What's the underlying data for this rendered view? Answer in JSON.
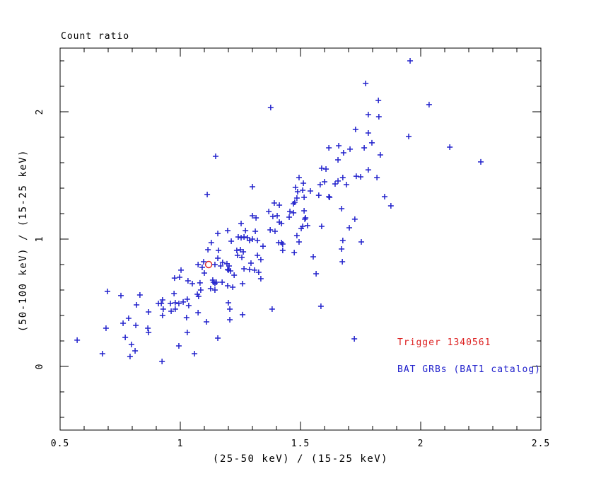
{
  "chart_data": {
    "type": "scatter",
    "title": "Count ratio",
    "xlabel": "(25-50 keV) / (15-25 keV)",
    "ylabel": "(50-100 keV) / (15-25 keV)",
    "xlim": [
      0.5,
      2.5
    ],
    "ylim": [
      -0.5,
      2.5
    ],
    "x_major_ticks": [
      0.5,
      1.0,
      1.5,
      2.0,
      2.5
    ],
    "x_tick_labels": [
      "0.5",
      "1",
      "1.5",
      "2",
      "2.5"
    ],
    "x_minor_step": 0.1,
    "y_major_ticks": [
      0,
      1,
      2
    ],
    "y_tick_labels": [
      "0",
      "1",
      "2"
    ],
    "y_minor_step": 0.2,
    "grid": false,
    "axis_color": "#000000",
    "background_color": "#ffffff",
    "legend": [
      {
        "label": "Trigger 1340561",
        "color": "#dd2222"
      },
      {
        "label": "BAT GRBs (BAT1 catalog)",
        "color": "#2222cc"
      }
    ],
    "series": [
      {
        "name": "Trigger 1340561",
        "marker": "circle-open",
        "color": "#dd2222",
        "points": [
          [
            1.118,
            0.8
          ]
        ]
      },
      {
        "name": "BAT GRBs (BAT1 catalog)",
        "marker": "plus",
        "color": "#2222cc",
        "points": [
          [
            1.147,
            1.65
          ],
          [
            1.771,
            2.222
          ],
          [
            1.824,
            2.089
          ],
          [
            1.782,
            1.978
          ],
          [
            1.826,
            1.961
          ],
          [
            1.376,
            2.033
          ],
          [
            1.729,
            1.861
          ],
          [
            1.782,
            1.833
          ],
          [
            1.797,
            1.756
          ],
          [
            1.618,
            1.717
          ],
          [
            1.659,
            1.733
          ],
          [
            1.679,
            1.678
          ],
          [
            1.706,
            1.706
          ],
          [
            1.765,
            1.717
          ],
          [
            1.656,
            1.622
          ],
          [
            1.832,
            1.661
          ],
          [
            1.588,
            1.556
          ],
          [
            1.606,
            1.55
          ],
          [
            1.782,
            1.544
          ],
          [
            1.956,
            2.4
          ],
          [
            2.035,
            2.056
          ],
          [
            1.95,
            1.806
          ],
          [
            2.121,
            1.722
          ],
          [
            2.25,
            1.606
          ],
          [
            1.112,
            1.35
          ],
          [
            1.156,
            1.044
          ],
          [
            1.129,
            0.972
          ],
          [
            1.115,
            0.917
          ],
          [
            1.159,
            0.911
          ],
          [
            1.156,
            0.85
          ],
          [
            1.074,
            0.8
          ],
          [
            1.097,
            0.822
          ],
          [
            1.091,
            0.778
          ],
          [
            1.1,
            0.733
          ],
          [
            1.144,
            0.8
          ],
          [
            1.168,
            0.789
          ],
          [
            1.003,
            0.756
          ],
          [
            0.976,
            0.694
          ],
          [
            0.997,
            0.7
          ],
          [
            1.032,
            0.672
          ],
          [
            1.05,
            0.65
          ],
          [
            1.082,
            0.656
          ],
          [
            1.135,
            0.678
          ],
          [
            1.138,
            0.661
          ],
          [
            1.144,
            0.65
          ],
          [
            1.15,
            0.661
          ],
          [
            1.085,
            0.6
          ],
          [
            1.126,
            0.611
          ],
          [
            1.144,
            0.6
          ],
          [
            0.697,
            0.589
          ],
          [
            0.753,
            0.556
          ],
          [
            0.832,
            0.561
          ],
          [
            0.974,
            0.572
          ],
          [
            1.071,
            0.567
          ],
          [
            1.076,
            0.55
          ],
          [
            1.029,
            0.528
          ],
          [
            0.926,
            0.522
          ],
          [
            1.494,
            1.483
          ],
          [
            1.512,
            1.439
          ],
          [
            1.582,
            1.428
          ],
          [
            1.6,
            1.45
          ],
          [
            1.644,
            1.433
          ],
          [
            1.656,
            1.456
          ],
          [
            1.676,
            1.483
          ],
          [
            1.691,
            1.428
          ],
          [
            1.732,
            1.494
          ],
          [
            1.75,
            1.489
          ],
          [
            1.818,
            1.483
          ],
          [
            1.3,
            1.411
          ],
          [
            1.479,
            1.406
          ],
          [
            1.488,
            1.372
          ],
          [
            1.509,
            1.383
          ],
          [
            1.541,
            1.378
          ],
          [
            1.515,
            1.328
          ],
          [
            1.576,
            1.344
          ],
          [
            1.618,
            1.333
          ],
          [
            1.621,
            1.328
          ],
          [
            1.485,
            1.322
          ],
          [
            1.391,
            1.283
          ],
          [
            1.412,
            1.267
          ],
          [
            1.471,
            1.278
          ],
          [
            1.476,
            1.289
          ],
          [
            1.671,
            1.239
          ],
          [
            1.368,
            1.217
          ],
          [
            1.456,
            1.217
          ],
          [
            1.471,
            1.206
          ],
          [
            1.385,
            1.178
          ],
          [
            1.403,
            1.183
          ],
          [
            1.3,
            1.183
          ],
          [
            1.315,
            1.167
          ],
          [
            1.515,
            1.222
          ],
          [
            1.453,
            1.172
          ],
          [
            1.521,
            1.167
          ],
          [
            1.518,
            1.156
          ],
          [
            1.726,
            1.156
          ],
          [
            1.253,
            1.122
          ],
          [
            1.412,
            1.133
          ],
          [
            1.421,
            1.122
          ],
          [
            1.509,
            1.1
          ],
          [
            1.529,
            1.106
          ],
          [
            1.503,
            1.083
          ],
          [
            1.588,
            1.1
          ],
          [
            1.703,
            1.089
          ],
          [
            1.197,
            1.067
          ],
          [
            1.271,
            1.067
          ],
          [
            1.312,
            1.061
          ],
          [
            1.374,
            1.072
          ],
          [
            1.394,
            1.061
          ],
          [
            1.212,
            0.983
          ],
          [
            1.241,
            1.017
          ],
          [
            1.253,
            1.011
          ],
          [
            1.265,
            1.017
          ],
          [
            1.279,
            1.011
          ],
          [
            1.288,
            0.989
          ],
          [
            1.3,
            1.0
          ],
          [
            1.321,
            0.989
          ],
          [
            1.344,
            0.944
          ],
          [
            1.409,
            0.972
          ],
          [
            1.421,
            0.972
          ],
          [
            1.426,
            0.961
          ],
          [
            1.485,
            1.028
          ],
          [
            1.494,
            0.978
          ],
          [
            1.676,
            0.989
          ],
          [
            1.753,
            0.978
          ],
          [
            1.235,
            0.911
          ],
          [
            1.25,
            0.917
          ],
          [
            1.262,
            0.9
          ],
          [
            1.238,
            0.872
          ],
          [
            1.256,
            0.856
          ],
          [
            1.426,
            0.911
          ],
          [
            1.474,
            0.894
          ],
          [
            1.671,
            0.922
          ],
          [
            1.176,
            0.817
          ],
          [
            1.194,
            0.806
          ],
          [
            1.321,
            0.872
          ],
          [
            1.335,
            0.839
          ],
          [
            1.294,
            0.811
          ],
          [
            1.553,
            0.861
          ],
          [
            1.674,
            0.822
          ],
          [
            1.203,
            0.789
          ],
          [
            1.197,
            0.761
          ],
          [
            1.2,
            0.756
          ],
          [
            1.209,
            0.75
          ],
          [
            1.224,
            0.717
          ],
          [
            1.265,
            0.767
          ],
          [
            1.288,
            0.761
          ],
          [
            1.309,
            0.756
          ],
          [
            1.326,
            0.739
          ],
          [
            1.335,
            0.689
          ],
          [
            1.565,
            0.728
          ],
          [
            1.174,
            0.661
          ],
          [
            1.197,
            0.633
          ],
          [
            1.218,
            0.622
          ],
          [
            1.259,
            0.65
          ],
          [
            1.85,
            1.333
          ],
          [
            1.876,
            1.261
          ],
          [
            0.818,
            0.483
          ],
          [
            0.909,
            0.494
          ],
          [
            0.921,
            0.494
          ],
          [
            0.959,
            0.494
          ],
          [
            0.979,
            0.5
          ],
          [
            0.994,
            0.494
          ],
          [
            1.012,
            0.506
          ],
          [
            1.035,
            0.478
          ],
          [
            0.868,
            0.428
          ],
          [
            0.926,
            0.4
          ],
          [
            0.929,
            0.45
          ],
          [
            0.962,
            0.433
          ],
          [
            0.979,
            0.45
          ],
          [
            1.026,
            0.383
          ],
          [
            1.074,
            0.422
          ],
          [
            1.109,
            0.35
          ],
          [
            0.691,
            0.3
          ],
          [
            0.762,
            0.339
          ],
          [
            0.785,
            0.378
          ],
          [
            0.815,
            0.322
          ],
          [
            0.865,
            0.3
          ],
          [
            0.868,
            0.267
          ],
          [
            0.771,
            0.228
          ],
          [
            0.571,
            0.206
          ],
          [
            0.797,
            0.172
          ],
          [
            0.812,
            0.122
          ],
          [
            0.994,
            0.161
          ],
          [
            1.029,
            0.267
          ],
          [
            1.059,
            0.1
          ],
          [
            1.156,
            0.222
          ],
          [
            0.676,
            0.1
          ],
          [
            0.791,
            0.078
          ],
          [
            0.924,
            0.039
          ],
          [
            1.2,
            0.5
          ],
          [
            1.206,
            0.45
          ],
          [
            1.259,
            0.406
          ],
          [
            1.206,
            0.367
          ],
          [
            1.382,
            0.45
          ],
          [
            1.585,
            0.472
          ],
          [
            1.724,
            0.217
          ]
        ]
      }
    ]
  }
}
